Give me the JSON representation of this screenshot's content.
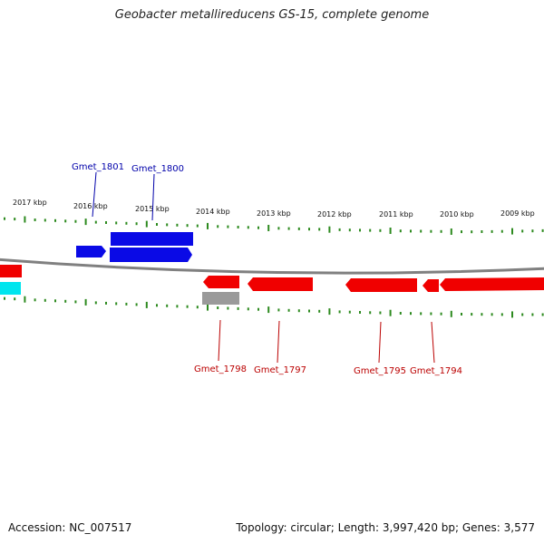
{
  "title": "Geobacter metallireducens GS-15, complete genome",
  "footer": {
    "accession": "Accession: NC_007517",
    "summary": "Topology: circular; Length: 3,997,420 bp; Genes: 3,577"
  },
  "colors": {
    "forward_gene": "#0a0ae6",
    "reverse_gene": "#f00000",
    "other_feature": "#9a9a9a",
    "cyan_feature": "#00e5ee",
    "tick": "#2d8a1f",
    "backbone": "#808080",
    "label_forward": "#0000aa",
    "label_reverse": "#bb0000"
  },
  "kbp_labels": [
    "2017 kbp",
    "2016 kbp",
    "2015 kbp",
    "2014 kbp",
    "2013 kbp",
    "2012 kbp",
    "2011 kbp",
    "2010 kbp",
    "2009 kbp"
  ],
  "gene_labels": {
    "forward": [
      "Gmet_1801",
      "Gmet_1800"
    ],
    "reverse": [
      "Gmet_1798",
      "Gmet_1797",
      "Gmet_1795",
      "Gmet_1794"
    ]
  }
}
